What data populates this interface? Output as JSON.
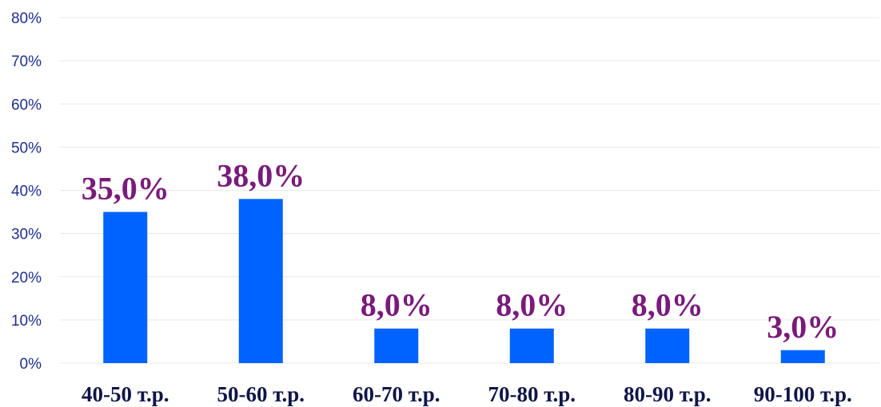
{
  "chart_data": {
    "type": "bar",
    "categories": [
      "40-50 т.р.",
      "50-60 т.р.",
      "60-70 т.р.",
      "70-80 т.р.",
      "80-90 т.р.",
      "90-100 т.р."
    ],
    "values": [
      35,
      38,
      8,
      8,
      8,
      3
    ],
    "data_labels": [
      "35,0%",
      "38,0%",
      "8,0%",
      "8,0%",
      "8,0%",
      "3,0%"
    ],
    "y_ticks": [
      "0%",
      "10%",
      "20%",
      "30%",
      "40%",
      "50%",
      "60%",
      "70%",
      "80%"
    ],
    "ylim": [
      0,
      80
    ],
    "grid": true,
    "legend": "none",
    "colors": {
      "bar": "#0062ff",
      "data_label": "#7a1a7a",
      "y_tick": "#1f2f8f",
      "x_tick": "#0f1547",
      "grid": "#e8e8e8"
    }
  }
}
